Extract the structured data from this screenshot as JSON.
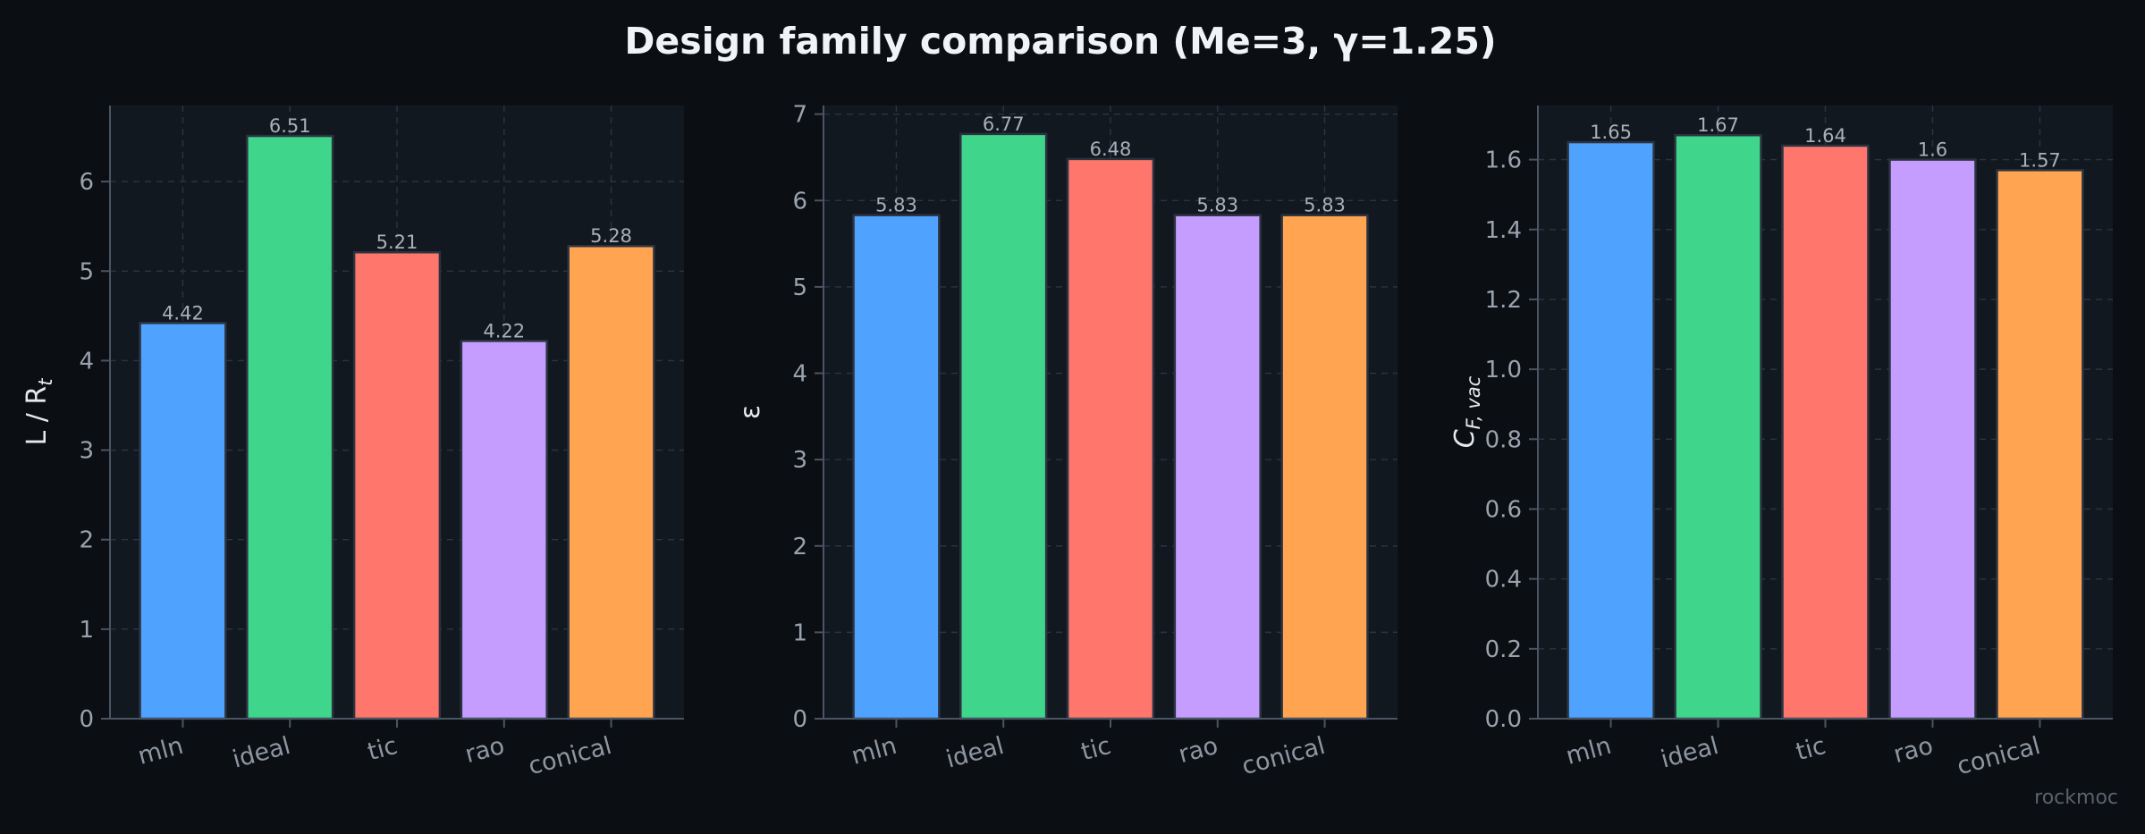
{
  "figure": {
    "suptitle": "Design family comparison (Me=3, γ=1.25)",
    "watermark": "rockmoc"
  },
  "colors": {
    "background": "#0b0e13",
    "plot_background": "#121820",
    "grid": "#2a3442",
    "axis": "#4a5563",
    "bar_edge": "#2b3340",
    "mln": "#4fa3ff",
    "ideal": "#3fd68c",
    "tic": "#ff766d",
    "rao": "#c59dff",
    "conical": "#ffa552"
  },
  "chart_data": [
    {
      "type": "bar",
      "categories": [
        "mln",
        "ideal",
        "tic",
        "rao",
        "conical"
      ],
      "values": [
        4.42,
        6.51,
        5.21,
        4.22,
        5.28
      ],
      "value_labels": [
        "4.42",
        "6.51",
        "5.21",
        "4.22",
        "5.28"
      ],
      "ylabel": "L / R",
      "ylabel_subscript": "t",
      "ylim": [
        0,
        6.85
      ],
      "yticks": [
        0,
        1,
        2,
        3,
        4,
        5,
        6
      ],
      "ytick_labels": [
        "0",
        "1",
        "2",
        "3",
        "4",
        "5",
        "6"
      ],
      "grid": true
    },
    {
      "type": "bar",
      "categories": [
        "mln",
        "ideal",
        "tic",
        "rao",
        "conical"
      ],
      "values": [
        5.83,
        6.77,
        6.48,
        5.83,
        5.83
      ],
      "value_labels": [
        "5.83",
        "6.77",
        "6.48",
        "5.83",
        "5.83"
      ],
      "ylabel": "ε",
      "ylabel_subscript": "",
      "ylim": [
        0,
        7.1
      ],
      "yticks": [
        0,
        1,
        2,
        3,
        4,
        5,
        6,
        7
      ],
      "ytick_labels": [
        "0",
        "1",
        "2",
        "3",
        "4",
        "5",
        "6",
        "7"
      ],
      "grid": true
    },
    {
      "type": "bar",
      "categories": [
        "mln",
        "ideal",
        "tic",
        "rao",
        "conical"
      ],
      "values": [
        1.65,
        1.67,
        1.64,
        1.6,
        1.57
      ],
      "value_labels": [
        "1.65",
        "1.67",
        "1.64",
        "1.6",
        "1.57"
      ],
      "ylabel": "C",
      "ylabel_subscript": "F, vac",
      "ylim": [
        0,
        1.755
      ],
      "yticks": [
        0,
        0.2,
        0.4,
        0.6,
        0.8,
        1.0,
        1.2,
        1.4,
        1.6
      ],
      "ytick_labels": [
        "0.0",
        "0.2",
        "0.4",
        "0.6",
        "0.8",
        "1.0",
        "1.2",
        "1.4",
        "1.6"
      ],
      "grid": true
    }
  ]
}
